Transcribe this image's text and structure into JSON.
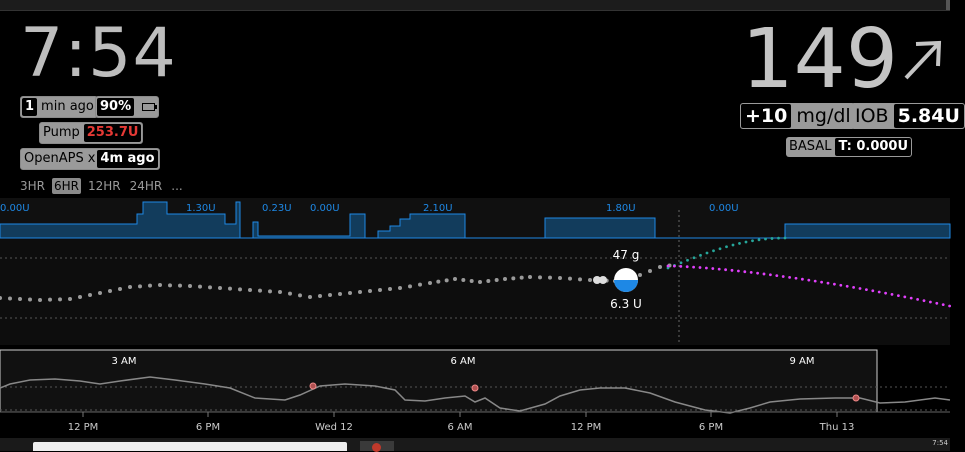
{
  "clock": "7:54",
  "status": {
    "age_num": "1",
    "age_text": "min ago",
    "battery": "90%",
    "pump_label": "Pump",
    "pump_value": "253.7U",
    "loop_label": "OpenAPS",
    "loop_symbol": "x",
    "loop_value": "4m ago"
  },
  "ranges": [
    "3HR",
    "6HR",
    "12HR",
    "24HR",
    "..."
  ],
  "ranges_active": "6HR",
  "bg": {
    "value": "149",
    "delta": "+10",
    "units": "mg/dl",
    "iob_label": "IOB",
    "iob_value": "5.84U",
    "basal_label": "BASAL",
    "basal_value": "T: 0.000U"
  },
  "basal_labels": [
    "0.00U",
    "1.30U",
    "0.23U",
    "0.00U",
    "2.10U",
    "1.80U",
    "0.00U"
  ],
  "treatment": {
    "carbs": "47 g",
    "insulin": "6.3 U"
  },
  "focus_ticks": [
    "3 AM",
    "6 AM",
    "9 AM"
  ],
  "nav_ticks": [
    "12 PM",
    "6 PM",
    "Wed 12",
    "6 AM",
    "12 PM",
    "6 PM",
    "Thu 13"
  ],
  "taskbar_time": "7:54",
  "colors": {
    "basal": "#1e88e5",
    "iob_forecast": "#26a69a",
    "cob_forecast": "#e040fb",
    "pump_value": "#e53935"
  }
}
